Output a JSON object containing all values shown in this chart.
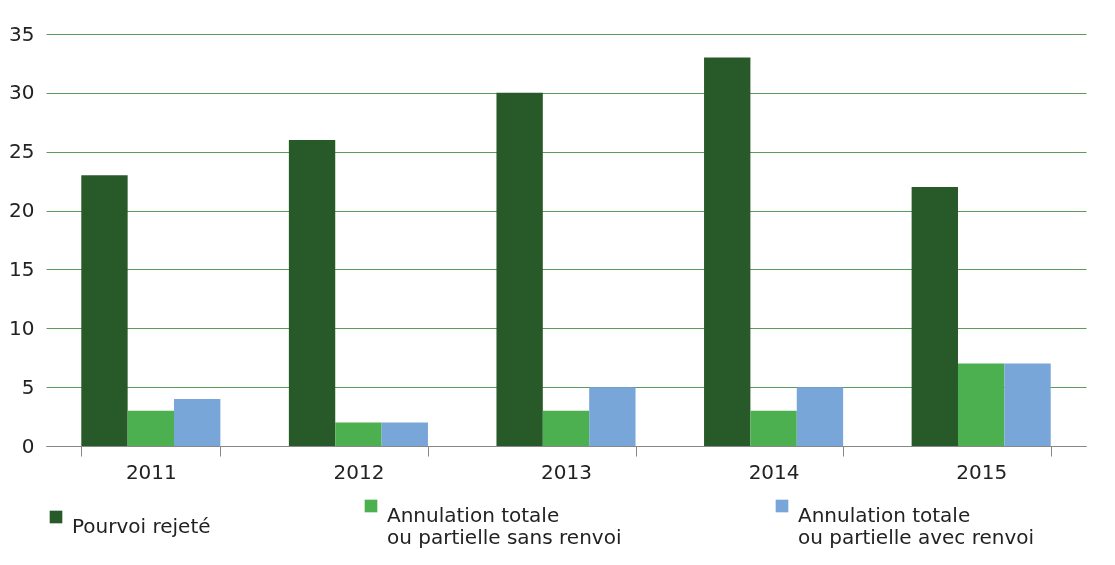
{
  "chart_data": {
    "type": "bar",
    "categories": [
      "2011",
      "2012",
      "2013",
      "2014",
      "2015"
    ],
    "series": [
      {
        "name": "Pourvoi rejeté",
        "color": "#285a29",
        "values": [
          23,
          26,
          30,
          33,
          22
        ]
      },
      {
        "name": "Annulation totale\nou partielle sans renvoi",
        "color": "#4cb050",
        "values": [
          3,
          2,
          3,
          3,
          7
        ]
      },
      {
        "name": "Annulation totale\nou partielle avec renvoi",
        "color": "#78a6d8",
        "values": [
          4,
          2,
          5,
          5,
          7
        ]
      }
    ],
    "ylim": [
      0,
      35
    ],
    "yticks": [
      0,
      5,
      10,
      15,
      20,
      25,
      30,
      35
    ],
    "grid": "y",
    "legend": "bottom"
  }
}
